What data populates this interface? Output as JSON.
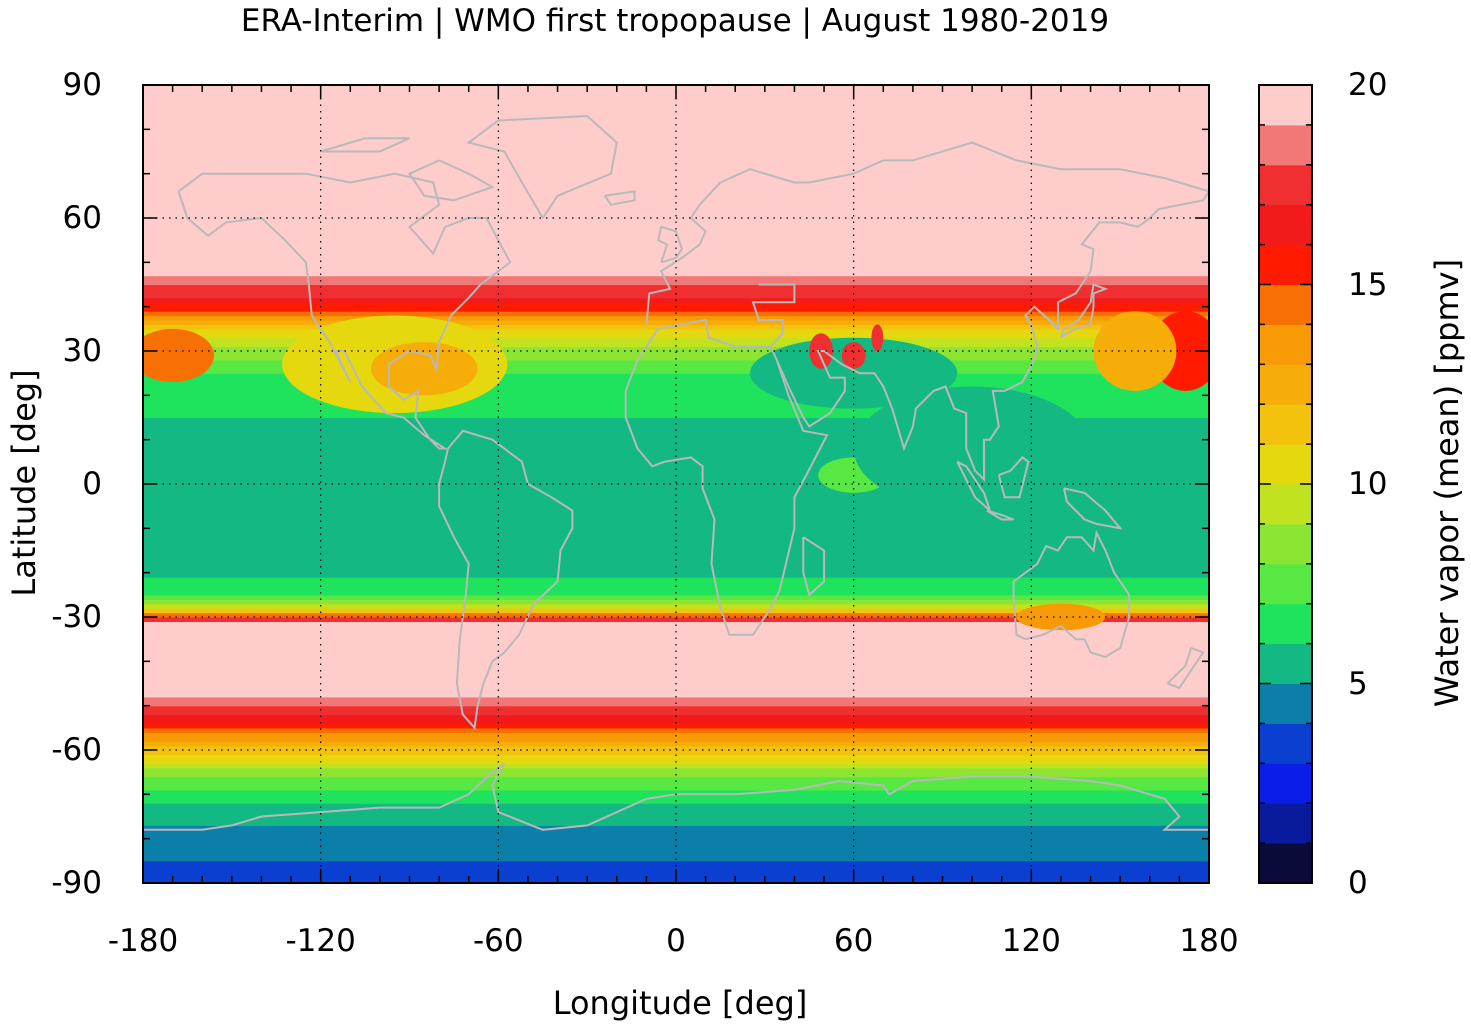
{
  "title": "ERA-Interim | WMO first tropopause | August 1980-2019",
  "chart_data": {
    "type": "heatmap",
    "title": "ERA-Interim | WMO first tropopause | August 1980-2019",
    "xlabel": "Longitude [deg]",
    "ylabel": "Latitude [deg]",
    "xlim": [
      -180,
      180
    ],
    "ylim": [
      -90,
      90
    ],
    "grid": true,
    "x_ticks": [
      "-180",
      "-120",
      "-60",
      "0",
      "60",
      "120",
      "180"
    ],
    "y_ticks": [
      "90",
      "60",
      "30",
      "0",
      "-30",
      "-60",
      "-90"
    ],
    "colorbar": {
      "label": "Water vapor (mean) [ppmv]",
      "range": [
        0,
        20
      ],
      "ticks": [
        "0",
        "5",
        "10",
        "15",
        "20"
      ],
      "levels": [
        0,
        1,
        2,
        3,
        4,
        5,
        6,
        7,
        8,
        9,
        10,
        11,
        12,
        13,
        14,
        15,
        16,
        17,
        18,
        19,
        20
      ],
      "colors": [
        "#0b0b3b",
        "#0a1a9c",
        "#0a1ee6",
        "#0b3fd0",
        "#0b7fa8",
        "#13b883",
        "#1fe35d",
        "#57e843",
        "#8de533",
        "#c0e21f",
        "#e5d80f",
        "#f2c20c",
        "#f7ad08",
        "#f79a06",
        "#f77004",
        "#ff1a00",
        "#f21a1a",
        "#f03030",
        "#f27878",
        "#ffcccc"
      ]
    },
    "zonal_mean_profile": {
      "latitude": [
        -90,
        -85,
        -80,
        -75,
        -70,
        -65,
        -60,
        -55,
        -52,
        -48,
        -40,
        -32,
        -30,
        -28,
        -25,
        -20,
        -10,
        0,
        10,
        20,
        25,
        30,
        35,
        38,
        42,
        50,
        60,
        90
      ],
      "value": [
        3.5,
        4,
        4.6,
        5.3,
        6.5,
        8.5,
        11.5,
        15,
        17,
        19,
        20,
        20,
        16,
        10,
        6.5,
        5.8,
        5.5,
        5.6,
        5.8,
        6.2,
        7,
        8.5,
        11,
        14,
        17,
        20,
        20,
        20
      ]
    }
  },
  "colors": {
    "coastline": "#b9b9b9",
    "background": "#ffffff",
    "axis": "#000000"
  }
}
